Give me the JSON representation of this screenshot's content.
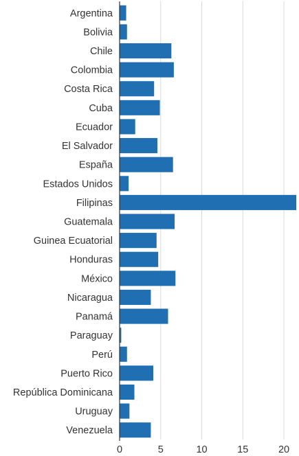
{
  "chart_data": {
    "type": "bar",
    "orientation": "horizontal",
    "categories": [
      "Argentina",
      "Bolivia",
      "Chile",
      "Colombia",
      "Costa Rica",
      "Cuba",
      "Ecuador",
      "El Salvador",
      "España",
      "Estados Unidos",
      "Filipinas",
      "Guatemala",
      "Guinea Ecuatorial",
      "Honduras",
      "México",
      "Nicaragua",
      "Panamá",
      "Paraguay",
      "Perú",
      "Puerto Rico",
      "República Dominicana",
      "Uruguay",
      "Venezuela"
    ],
    "values": [
      0.8,
      0.9,
      6.3,
      6.6,
      4.2,
      4.9,
      1.9,
      4.6,
      6.5,
      1.1,
      21.5,
      6.7,
      4.5,
      4.7,
      6.8,
      3.8,
      5.9,
      0.2,
      0.9,
      4.1,
      1.8,
      1.2,
      3.8
    ],
    "xlim": [
      0,
      21.5
    ],
    "xticks": [
      0,
      5,
      10,
      15,
      20
    ],
    "grid": true,
    "bar_color": "#1f6fb2",
    "title": "",
    "xlabel": "",
    "ylabel": ""
  }
}
